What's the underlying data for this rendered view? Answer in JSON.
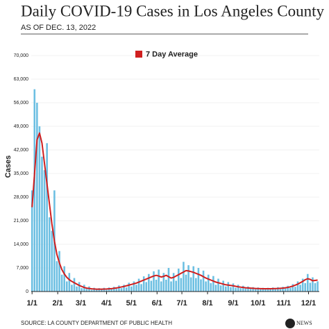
{
  "chart_data": {
    "type": "combo",
    "title": "Daily COVID-19 Cases in Los Angeles County",
    "subtitle": "AS OF DEC. 13, 2022",
    "y_label": "Cases",
    "source": "SOURCE: LA COUNTY DEPARTMENT OF PUBLIC HEALTH",
    "logo": "abc",
    "logo_label": "NEWS",
    "xlim": [
      0,
      348
    ],
    "xticks": [
      {
        "value": 1,
        "label": "1/1"
      },
      {
        "value": 32,
        "label": "2/1"
      },
      {
        "value": 60,
        "label": "3/1"
      },
      {
        "value": 91,
        "label": "4/1"
      },
      {
        "value": 121,
        "label": "5/1"
      },
      {
        "value": 152,
        "label": "6/1"
      },
      {
        "value": 182,
        "label": "7/1"
      },
      {
        "value": 213,
        "label": "8/1"
      },
      {
        "value": 244,
        "label": "9/1"
      },
      {
        "value": 274,
        "label": "10/1"
      },
      {
        "value": 305,
        "label": "11/1"
      },
      {
        "value": 335,
        "label": "12/1"
      }
    ],
    "ylim": [
      0,
      70000
    ],
    "yticks": [
      0,
      {
        "value": 7000,
        "label": "7,000"
      },
      {
        "value": 14000,
        "label": "14,000"
      },
      {
        "value": 21000,
        "label": "21,000"
      },
      {
        "value": 28000,
        "label": "28,000"
      },
      {
        "value": 35000,
        "label": "35,000"
      },
      {
        "value": 42000,
        "label": "42,000"
      },
      {
        "value": 49000,
        "label": "49,000"
      },
      {
        "value": 56000,
        "label": "56,000"
      },
      {
        "value": 63000,
        "label": "63,000"
      },
      {
        "value": 70000,
        "label": "70,000"
      }
    ],
    "grid": true,
    "x": [
      1,
      4,
      7,
      10,
      13,
      16,
      19,
      22,
      25,
      28,
      31,
      34,
      37,
      40,
      43,
      46,
      49,
      52,
      55,
      58,
      61,
      64,
      67,
      70,
      73,
      76,
      79,
      82,
      85,
      88,
      91,
      94,
      97,
      100,
      103,
      106,
      109,
      112,
      115,
      118,
      121,
      124,
      127,
      130,
      133,
      136,
      139,
      142,
      145,
      148,
      151,
      154,
      157,
      160,
      163,
      166,
      169,
      172,
      175,
      178,
      181,
      184,
      187,
      190,
      193,
      196,
      199,
      202,
      205,
      208,
      211,
      214,
      217,
      220,
      223,
      226,
      229,
      232,
      235,
      238,
      241,
      244,
      247,
      250,
      253,
      256,
      259,
      262,
      265,
      268,
      271,
      274,
      277,
      280,
      283,
      286,
      289,
      292,
      295,
      298,
      301,
      304,
      307,
      310,
      313,
      316,
      319,
      322,
      325,
      328,
      331,
      334,
      337,
      340,
      343,
      346
    ],
    "series": [
      {
        "type": "bar",
        "color": "#6cbfe2",
        "values": [
          30000,
          60000,
          56000,
          49000,
          40000,
          36000,
          44000,
          22000,
          18000,
          30000,
          9000,
          12000,
          5000,
          7500,
          3000,
          5500,
          2000,
          4000,
          1500,
          2800,
          1000,
          2000,
          800,
          1500,
          500,
          1100,
          600,
          1000,
          600,
          1100,
          500,
          1200,
          700,
          1400,
          800,
          1800,
          1000,
          2000,
          1200,
          2600,
          1500,
          3000,
          2000,
          3800,
          2200,
          4500,
          2800,
          5200,
          3200,
          6000,
          3500,
          6500,
          3000,
          5500,
          3500,
          7000,
          3000,
          5500,
          3200,
          6800,
          4000,
          8800,
          5000,
          7800,
          4200,
          7500,
          4000,
          7000,
          3600,
          6200,
          3000,
          5000,
          2500,
          4600,
          2000,
          3800,
          1800,
          3200,
          1500,
          2800,
          1300,
          2400,
          1100,
          2000,
          1000,
          1700,
          900,
          1500,
          800,
          1300,
          700,
          1200,
          650,
          1100,
          650,
          1100,
          700,
          1200,
          700,
          1300,
          750,
          1400,
          900,
          1700,
          1100,
          2200,
          1400,
          3000,
          2000,
          3800,
          2500,
          5200,
          2600,
          4200,
          2500,
          3000
        ]
      },
      {
        "type": "line",
        "name": "7 Day Average",
        "color": "#d01f1f",
        "values": [
          25000,
          35000,
          45000,
          47000,
          44000,
          38000,
          32000,
          26000,
          20000,
          15000,
          11000,
          8500,
          6500,
          5200,
          4200,
          3500,
          3000,
          2600,
          2200,
          1800,
          1500,
          1200,
          1000,
          900,
          800,
          750,
          700,
          700,
          700,
          720,
          750,
          800,
          850,
          950,
          1050,
          1200,
          1350,
          1500,
          1700,
          1900,
          2100,
          2300,
          2500,
          2800,
          3100,
          3400,
          3700,
          4000,
          4300,
          4600,
          4800,
          4600,
          4300,
          4500,
          4800,
          4400,
          4000,
          4200,
          4600,
          5000,
          5400,
          5800,
          6200,
          6100,
          5900,
          5700,
          5400,
          5100,
          4800,
          4400,
          4000,
          3700,
          3400,
          3100,
          2800,
          2600,
          2400,
          2200,
          2000,
          1900,
          1800,
          1700,
          1550,
          1400,
          1300,
          1200,
          1100,
          1050,
          1000,
          950,
          900,
          870,
          850,
          830,
          820,
          820,
          830,
          850,
          880,
          900,
          950,
          1000,
          1100,
          1200,
          1400,
          1600,
          1900,
          2200,
          2600,
          3000,
          3500,
          3800,
          3600,
          3200,
          3300,
          3400
        ]
      }
    ]
  }
}
